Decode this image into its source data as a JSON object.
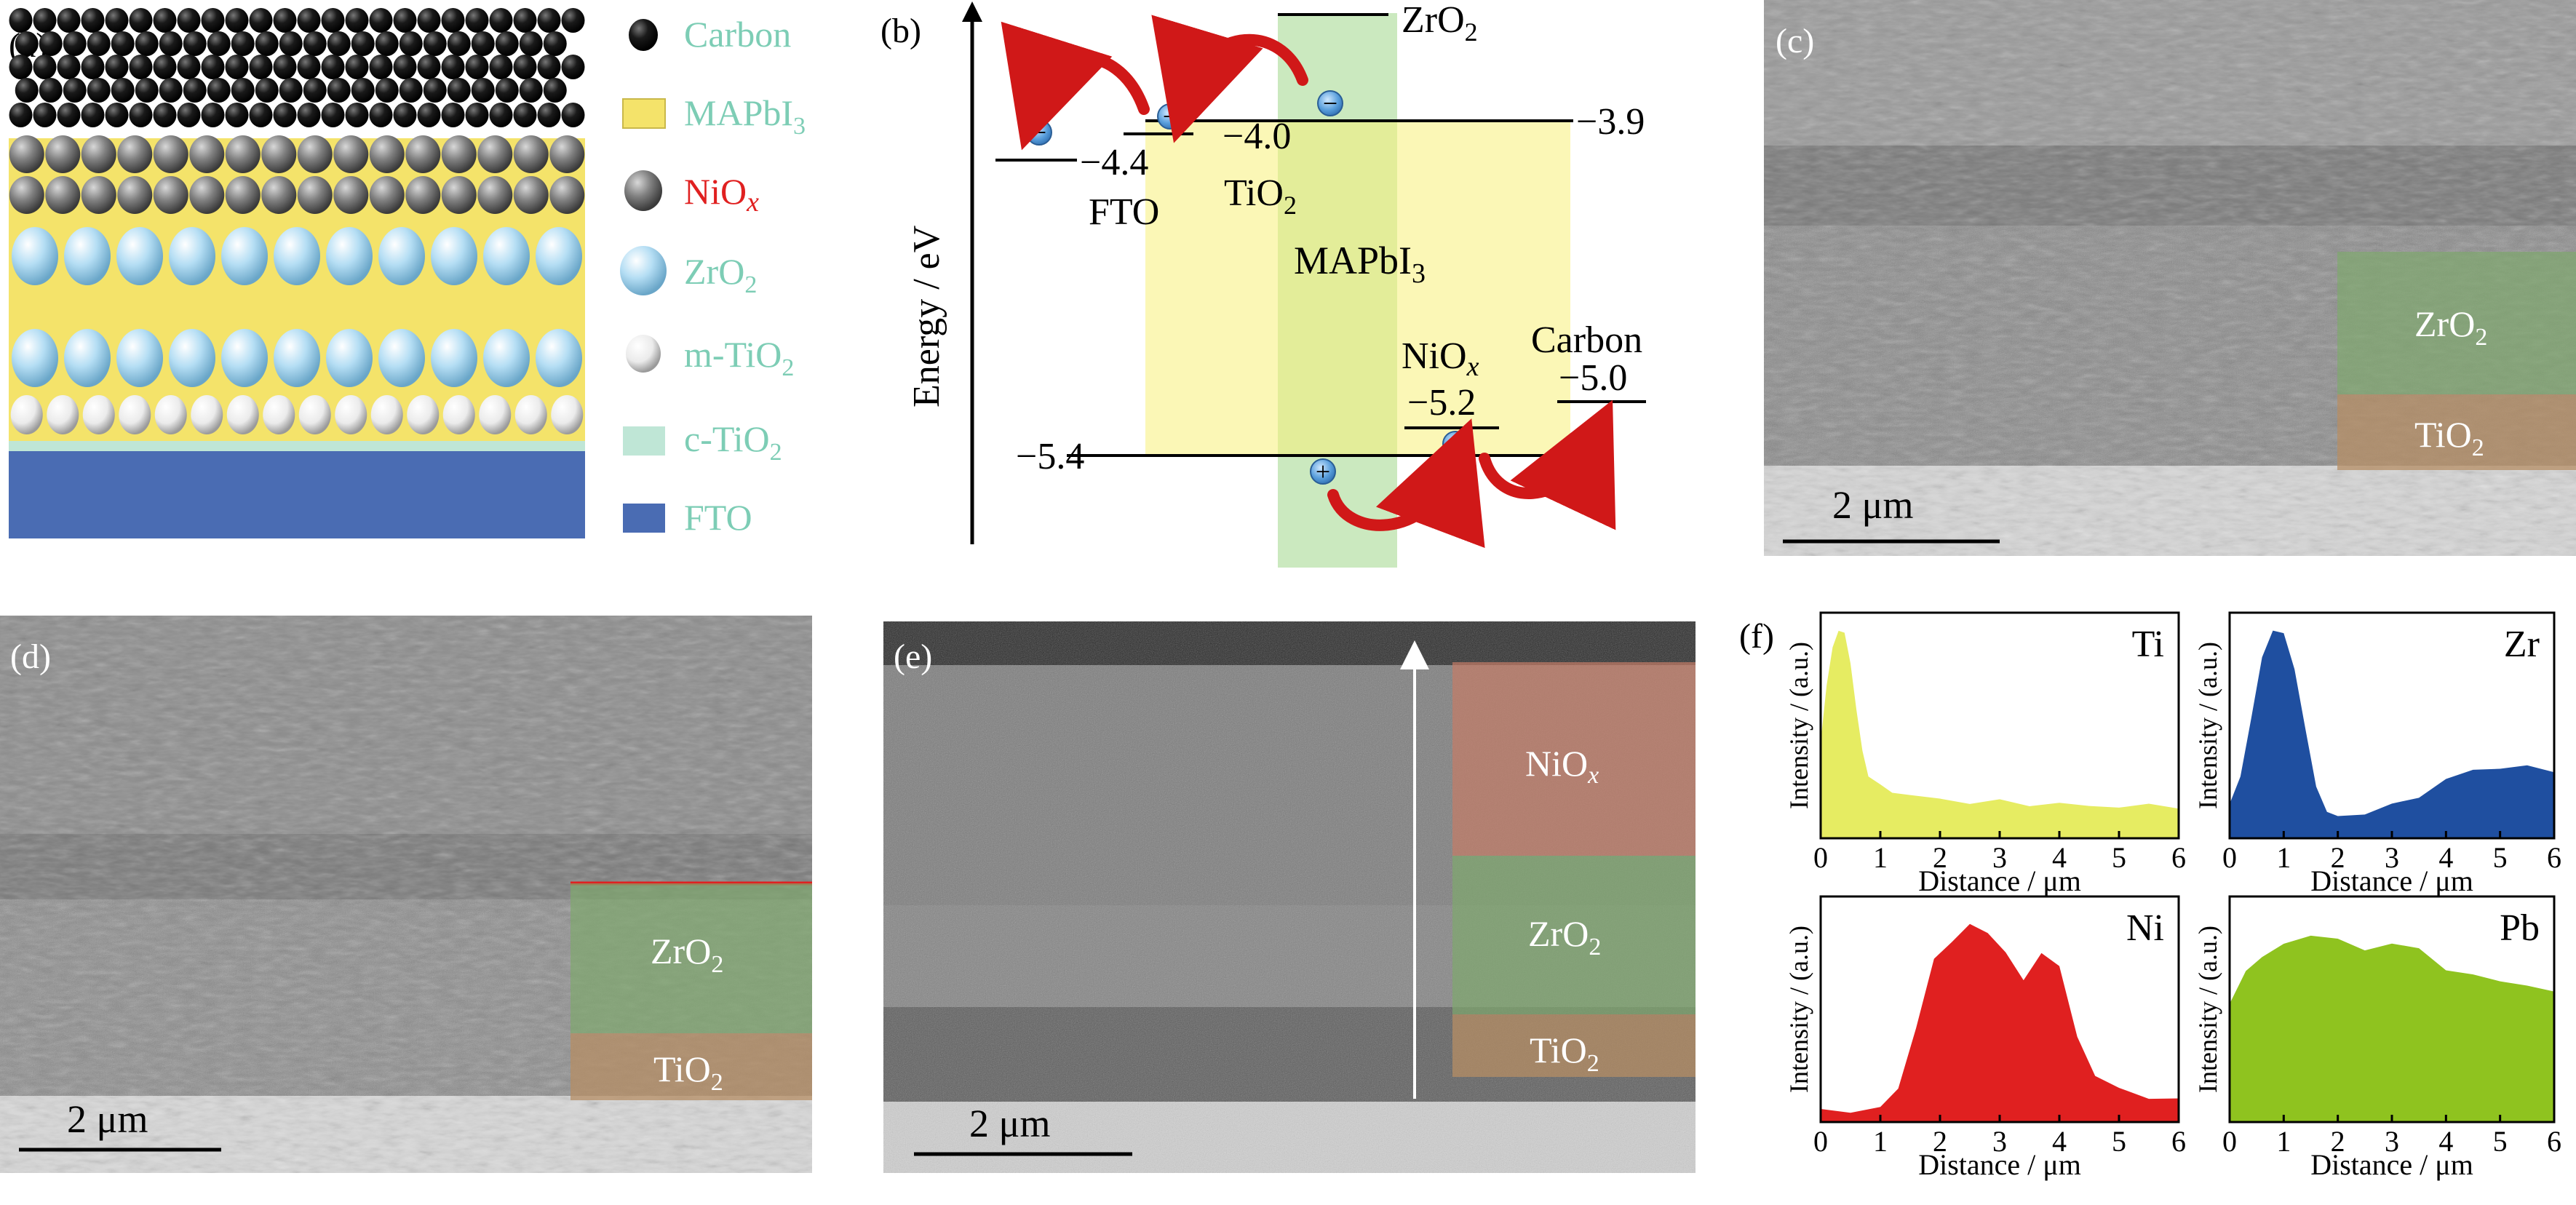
{
  "panels": {
    "a": {
      "label": "(a)",
      "legend": [
        {
          "key": "carbon",
          "label": "Carbon",
          "color": "#7dcdb5"
        },
        {
          "key": "mapbi3",
          "label": "MAPbI",
          "sub": "3",
          "color": "#7dcdb5"
        },
        {
          "key": "niox",
          "label": "NiO",
          "sub": "x",
          "color": "#e02020"
        },
        {
          "key": "zro2",
          "label": "ZrO",
          "sub": "2",
          "color": "#7dcdb5"
        },
        {
          "key": "mtio2",
          "label": "m-TiO",
          "sub": "2",
          "color": "#7dcdb5"
        },
        {
          "key": "ctio2",
          "label": "c-TiO",
          "sub": "2",
          "color": "#7dcdb5"
        },
        {
          "key": "fto",
          "label": "FTO",
          "color": "#7dcdb5"
        }
      ],
      "colors": {
        "carbon": "#0a0a0a",
        "mapbi3": "#f4e36a",
        "niox": "#808080",
        "zro2": "#a9d6ef",
        "mtio2": "#f2f2f2",
        "ctio2": "#bfe6d6",
        "fto": "#4a6cb3"
      }
    },
    "b": {
      "label": "(b)",
      "y_axis_label": "Energy / eV",
      "levels": {
        "zro2": {
          "name": "ZrO",
          "sub": "2"
        },
        "mapbi3_top": "−3.9",
        "tio2_value": "−4.0",
        "fto_value": "−4.4",
        "fto_name": "FTO",
        "tio2_name": "TiO",
        "tio2_sub": "2",
        "mapbi3_name": "MAPbI",
        "mapbi3_sub": "3",
        "niox_name": "NiO",
        "niox_sub": "x",
        "niox_value": "−5.2",
        "carbon_name": "Carbon",
        "carbon_value": "−5.0",
        "mapbi3_bottom": "−5.4"
      },
      "electron_symbol": "−",
      "hole_symbol": "+"
    },
    "c": {
      "label": "(c)",
      "overlays": [
        {
          "name": "ZrO",
          "sub": "2"
        },
        {
          "name": "TiO",
          "sub": "2"
        }
      ],
      "scale": "2 μm"
    },
    "d": {
      "label": "(d)",
      "overlays": [
        {
          "name": "ZrO",
          "sub": "2"
        },
        {
          "name": "TiO",
          "sub": "2"
        }
      ],
      "scale": "2 μm"
    },
    "e": {
      "label": "(e)",
      "overlays": [
        {
          "name": "NiO",
          "sub": "x"
        },
        {
          "name": "ZrO",
          "sub": "2"
        },
        {
          "name": "TiO",
          "sub": "2"
        }
      ],
      "scale": "2 μm"
    },
    "f": {
      "label": "(f)"
    }
  },
  "chart_data": [
    {
      "type": "area",
      "element": "Ti",
      "color": "#e6ec62",
      "xlabel": "Distance / μm",
      "ylabel": "Intensity / (a.u.)",
      "xlim": [
        0,
        6
      ],
      "ylim": [
        0,
        1
      ],
      "x": [
        0,
        0.1,
        0.2,
        0.3,
        0.4,
        0.5,
        0.6,
        0.7,
        0.8,
        1.0,
        1.2,
        1.5,
        2.0,
        2.5,
        3.0,
        3.5,
        4.0,
        4.5,
        5.0,
        5.5,
        6.0
      ],
      "values": [
        0.45,
        0.72,
        0.88,
        0.98,
        0.95,
        0.82,
        0.6,
        0.4,
        0.3,
        0.24,
        0.22,
        0.2,
        0.18,
        0.17,
        0.17,
        0.16,
        0.16,
        0.15,
        0.15,
        0.15,
        0.15
      ],
      "xticks": [
        "0",
        "1",
        "2",
        "3",
        "4",
        "5",
        "6"
      ]
    },
    {
      "type": "area",
      "element": "Zr",
      "color": "#1f4fa0",
      "xlabel": "Distance / μm",
      "ylabel": "Intensity / (a.u.)",
      "xlim": [
        0,
        6
      ],
      "ylim": [
        0,
        1
      ],
      "x": [
        0,
        0.2,
        0.4,
        0.6,
        0.8,
        1.0,
        1.2,
        1.4,
        1.6,
        1.8,
        2.0,
        2.5,
        3.0,
        3.5,
        4.0,
        4.5,
        5.0,
        5.5,
        6.0
      ],
      "values": [
        0.15,
        0.3,
        0.55,
        0.85,
        0.97,
        0.95,
        0.8,
        0.5,
        0.25,
        0.12,
        0.1,
        0.12,
        0.15,
        0.2,
        0.27,
        0.32,
        0.33,
        0.33,
        0.32
      ],
      "xticks": [
        "0",
        "1",
        "2",
        "3",
        "4",
        "5",
        "6"
      ]
    },
    {
      "type": "area",
      "element": "Ni",
      "color": "#e02020",
      "xlabel": "Distance / μm",
      "ylabel": "Intensity / (a.u.)",
      "xlim": [
        0,
        6
      ],
      "ylim": [
        0,
        1
      ],
      "x": [
        0,
        0.5,
        1.0,
        1.3,
        1.6,
        1.9,
        2.2,
        2.5,
        2.8,
        3.1,
        3.4,
        3.7,
        4.0,
        4.3,
        4.6,
        5.0,
        5.5,
        6.0
      ],
      "values": [
        0.05,
        0.05,
        0.07,
        0.15,
        0.45,
        0.75,
        0.85,
        0.92,
        0.88,
        0.8,
        0.65,
        0.8,
        0.72,
        0.4,
        0.22,
        0.15,
        0.12,
        0.1
      ],
      "xticks": [
        "0",
        "1",
        "2",
        "3",
        "4",
        "5",
        "6"
      ]
    },
    {
      "type": "area",
      "element": "Pb",
      "color": "#8fc31f",
      "xlabel": "Distance / μm",
      "ylabel": "Intensity / (a.u.)",
      "xlim": [
        0,
        6
      ],
      "ylim": [
        0,
        1
      ],
      "x": [
        0,
        0.3,
        0.6,
        1.0,
        1.5,
        2.0,
        2.5,
        3.0,
        3.5,
        4.0,
        4.5,
        5.0,
        5.5,
        6.0
      ],
      "values": [
        0.55,
        0.7,
        0.78,
        0.82,
        0.88,
        0.85,
        0.8,
        0.84,
        0.8,
        0.72,
        0.68,
        0.66,
        0.64,
        0.6
      ],
      "xticks": [
        "0",
        "1",
        "2",
        "3",
        "4",
        "5",
        "6"
      ]
    }
  ]
}
